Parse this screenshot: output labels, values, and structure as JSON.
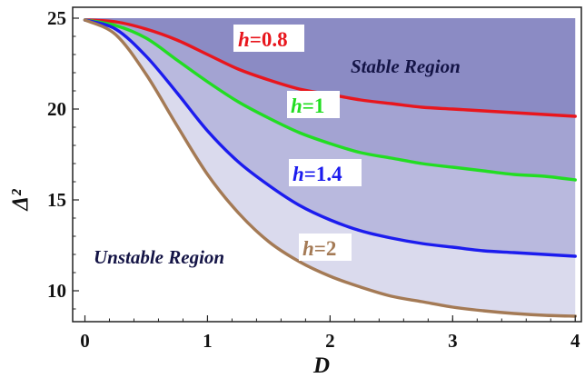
{
  "chart_data": {
    "type": "area",
    "xlabel": "D",
    "ylabel": "Δ²",
    "xlim": [
      -0.1,
      4.05
    ],
    "ylim": [
      8.3,
      25.6
    ],
    "xticks": [
      0,
      1,
      2,
      3,
      4
    ],
    "yticks": [
      10,
      15,
      20,
      25
    ],
    "top_value": 25,
    "x": [
      0,
      0.25,
      0.5,
      0.75,
      1.0,
      1.25,
      1.5,
      1.75,
      2.0,
      2.25,
      2.5,
      2.75,
      3.0,
      3.25,
      3.5,
      3.75,
      4.0
    ],
    "series": [
      {
        "name": "h=0.8",
        "color": "#e8161d",
        "values": [
          24.9,
          24.8,
          24.4,
          23.8,
          23.0,
          22.2,
          21.6,
          21.1,
          20.8,
          20.5,
          20.3,
          20.1,
          20.0,
          19.9,
          19.8,
          19.7,
          19.6
        ]
      },
      {
        "name": "h=1",
        "color": "#22dd22",
        "values": [
          24.9,
          24.6,
          23.9,
          22.7,
          21.5,
          20.4,
          19.5,
          18.7,
          18.1,
          17.6,
          17.3,
          17.0,
          16.8,
          16.6,
          16.4,
          16.3,
          16.1
        ]
      },
      {
        "name": "h=1.4",
        "color": "#1c1cee",
        "values": [
          24.9,
          24.4,
          22.9,
          20.9,
          18.8,
          17.1,
          15.8,
          14.7,
          13.9,
          13.3,
          12.9,
          12.6,
          12.4,
          12.2,
          12.1,
          12.0,
          11.9
        ]
      },
      {
        "name": "h=2",
        "color": "#a47a55",
        "values": [
          24.9,
          24.1,
          21.9,
          19.1,
          16.4,
          14.3,
          12.7,
          11.6,
          10.8,
          10.2,
          9.7,
          9.4,
          9.1,
          8.9,
          8.75,
          8.65,
          8.6
        ]
      }
    ],
    "curve_labels": [
      {
        "prefix": "h",
        "rest": "=0.8"
      },
      {
        "prefix": "h",
        "rest": "=1"
      },
      {
        "prefix": "h",
        "rest": "=1.4"
      },
      {
        "prefix": "h",
        "rest": "=2"
      }
    ],
    "annotations": [
      "Stable Region",
      "Unstable Region"
    ],
    "fill_colors": [
      "#8b8bc4",
      "#a3a3d2",
      "#b9b9de",
      "#dadaed"
    ]
  }
}
